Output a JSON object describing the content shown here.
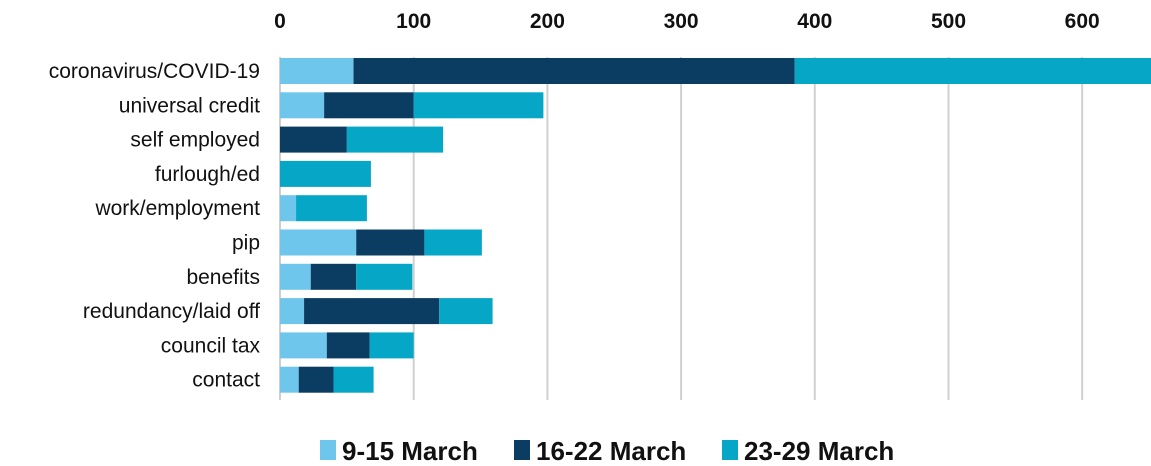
{
  "chart_data": {
    "type": "bar",
    "orientation": "horizontal",
    "stacked": true,
    "title": "",
    "xlabel": "",
    "ylabel": "",
    "categories": [
      "coronavirus/COVID-19",
      "universal credit",
      "self employed",
      "furlough/ed",
      "work/employment",
      "pip",
      "benefits",
      "redundancy/laid off",
      "council tax",
      "contact"
    ],
    "series": [
      {
        "name": "9-15 March",
        "color": "#6EC6EC",
        "values": [
          55,
          33,
          0,
          0,
          12,
          57,
          23,
          18,
          35,
          14
        ]
      },
      {
        "name": "16-22 March",
        "color": "#0B3C61",
        "values": [
          330,
          67,
          50,
          0,
          0,
          51,
          34,
          101,
          32,
          26
        ]
      },
      {
        "name": "23-29 March",
        "color": "#06A6C7",
        "values": [
          275,
          97,
          72,
          68,
          53,
          43,
          42,
          40,
          33,
          30
        ]
      }
    ],
    "xlim": [
      0,
      650
    ],
    "xticks": [
      "0",
      "100",
      "200",
      "300",
      "400",
      "500",
      "600"
    ],
    "grid": "vertical",
    "legend": "bottom"
  }
}
